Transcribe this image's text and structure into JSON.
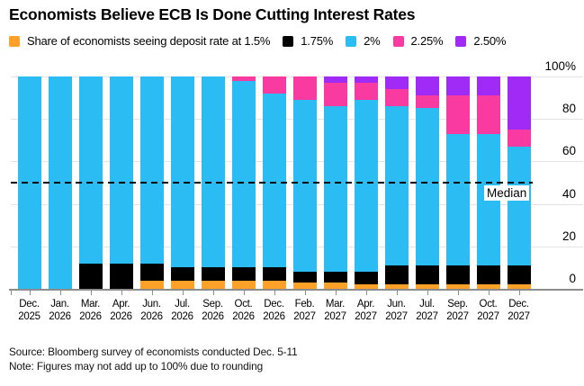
{
  "title": "Economists Believe ECB Is Done Cutting Interest Rates",
  "legend": {
    "items": [
      {
        "label": "Share of economists seeing deposit rate at 1.5%",
        "color": "#fda129"
      },
      {
        "label": "1.75%",
        "color": "#000000"
      },
      {
        "label": "2%",
        "color": "#2abcf2"
      },
      {
        "label": "2.25%",
        "color": "#f93aa0"
      },
      {
        "label": "2.50%",
        "color": "#a02bf7"
      }
    ]
  },
  "chart_data": {
    "type": "bar",
    "variant": "stacked-column",
    "unit": "%",
    "categories": [
      "Dec. 2025",
      "Jan. 2026",
      "Mar. 2026",
      "Apr. 2026",
      "Jun. 2026",
      "Jul. 2026",
      "Sep. 2026",
      "Oct. 2026",
      "Dec. 2026",
      "Feb. 2027",
      "Mar. 2027",
      "Apr. 2027",
      "Jun. 2027",
      "Jul. 2027",
      "Sep. 2027",
      "Oct. 2027",
      "Dec. 2027"
    ],
    "series": [
      {
        "name": "1.5%",
        "color": "#fda129",
        "values": [
          0,
          0,
          0,
          0,
          4,
          4,
          4,
          4,
          4,
          3,
          3,
          2,
          2,
          2,
          2,
          2,
          2
        ]
      },
      {
        "name": "1.75%",
        "color": "#000000",
        "values": [
          0,
          0,
          12,
          12,
          8,
          6,
          6,
          6,
          6,
          5,
          5,
          6,
          9,
          9,
          9,
          9,
          9
        ]
      },
      {
        "name": "2%",
        "color": "#2abcf2",
        "values": [
          100,
          100,
          88,
          88,
          88,
          90,
          90,
          88,
          82,
          81,
          78,
          81,
          75,
          74,
          62,
          62,
          56
        ]
      },
      {
        "name": "2.25%",
        "color": "#f93aa0",
        "values": [
          0,
          0,
          0,
          0,
          0,
          0,
          0,
          2,
          8,
          11,
          11,
          8,
          8,
          6,
          18,
          18,
          8
        ]
      },
      {
        "name": "2.50%",
        "color": "#a02bf7",
        "values": [
          0,
          0,
          0,
          0,
          0,
          0,
          0,
          0,
          0,
          0,
          3,
          3,
          6,
          9,
          9,
          9,
          25
        ]
      }
    ],
    "ylim": [
      0,
      100
    ],
    "yticks": [
      0,
      20,
      40,
      60,
      80,
      100
    ],
    "ytick_labels": [
      "0",
      "20",
      "40",
      "60",
      "80",
      "100%"
    ],
    "y_axis_side": "right",
    "grid": true,
    "legend_position": "top",
    "median_line": {
      "value": 50,
      "label": "Median",
      "style": "dashed",
      "color": "#000000"
    }
  },
  "footer": {
    "source": "Source: Bloomberg survey of economists conducted Dec. 5-11",
    "note": "Note: Figures may not add up to 100% due to rounding"
  }
}
